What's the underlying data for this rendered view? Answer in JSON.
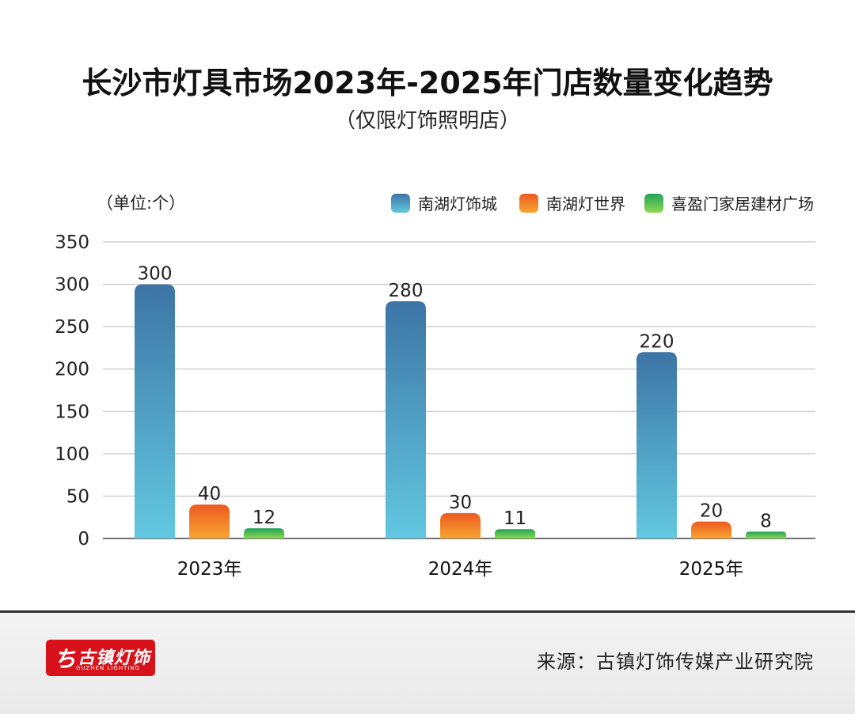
{
  "page": {
    "title": "长沙市灯具市场2023年-2025年门店数量变化趋势",
    "subtitle": "（仅限灯饰照明店）"
  },
  "footer": {
    "logo_text": "古镇灯饰",
    "logo_glyph": "ち",
    "logo_subtext": "GUZHEN LIGHTING",
    "source": "来源：古镇灯饰传媒产业研究院"
  },
  "colors": {
    "blue_top": "#3d75a6",
    "blue_bottom": "#62c8e0",
    "orange_top": "#ec5a1f",
    "orange_bottom": "#f7a532",
    "green_top": "#21a35a",
    "green_bottom": "#8dd94e",
    "grid": "#bdbdbd",
    "axis": "#444444"
  },
  "chart_data": {
    "type": "bar",
    "unit_label": "（单位:个）",
    "categories": [
      "2023年",
      "2024年",
      "2025年"
    ],
    "series": [
      {
        "name": "南湖灯饰城",
        "values": [
          300,
          280,
          220
        ],
        "color": "blue"
      },
      {
        "name": "南湖灯世界",
        "values": [
          40,
          30,
          20
        ],
        "color": "orange"
      },
      {
        "name": "喜盈门家居建材广场",
        "values": [
          12,
          11,
          8
        ],
        "color": "green"
      }
    ],
    "ylim": [
      0,
      350
    ],
    "yticks": [
      0,
      50,
      100,
      150,
      200,
      250,
      300,
      350
    ],
    "grid": true,
    "legend_position": "top-right",
    "data_labels": true
  }
}
